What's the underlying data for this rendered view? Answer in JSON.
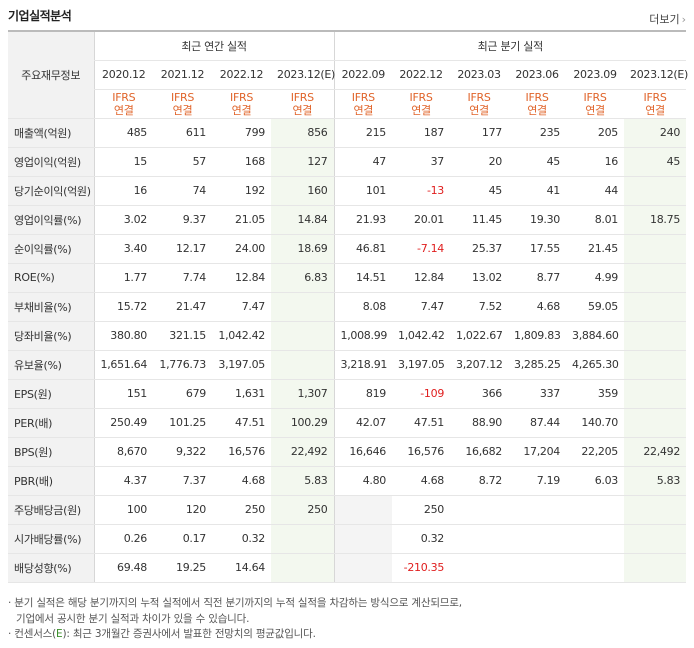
{
  "title": "기업실적분석",
  "more_label": "더보기",
  "header": {
    "corner": "주요재무정보",
    "annual_label": "최근 연간 실적",
    "quarterly_label": "최근 분기 실적",
    "periods": [
      "2020.12",
      "2021.12",
      "2022.12",
      "2023.12(E)",
      "2022.09",
      "2022.12",
      "2023.03",
      "2023.06",
      "2023.09",
      "2023.12(E)"
    ],
    "ifrs_line1": "IFRS",
    "ifrs_line2": "연결"
  },
  "rows": [
    {
      "label": "매출액(억원)",
      "values": [
        "485",
        "611",
        "799",
        "856",
        "215",
        "187",
        "177",
        "235",
        "205",
        "240"
      ]
    },
    {
      "label": "영업이익(억원)",
      "values": [
        "15",
        "57",
        "168",
        "127",
        "47",
        "37",
        "20",
        "45",
        "16",
        "45"
      ]
    },
    {
      "label": "당기순이익(억원)",
      "values": [
        "16",
        "74",
        "192",
        "160",
        "101",
        "-13",
        "45",
        "41",
        "44",
        ""
      ]
    },
    {
      "label": "영업이익률(%)",
      "values": [
        "3.02",
        "9.37",
        "21.05",
        "14.84",
        "21.93",
        "20.01",
        "11.45",
        "19.30",
        "8.01",
        "18.75"
      ]
    },
    {
      "label": "순이익률(%)",
      "values": [
        "3.40",
        "12.17",
        "24.00",
        "18.69",
        "46.81",
        "-7.14",
        "25.37",
        "17.55",
        "21.45",
        ""
      ]
    },
    {
      "label": "ROE(%)",
      "values": [
        "1.77",
        "7.74",
        "12.84",
        "6.83",
        "14.51",
        "12.84",
        "13.02",
        "8.77",
        "4.99",
        ""
      ]
    },
    {
      "label": "부채비율(%)",
      "values": [
        "15.72",
        "21.47",
        "7.47",
        "",
        "8.08",
        "7.47",
        "7.52",
        "4.68",
        "59.05",
        ""
      ]
    },
    {
      "label": "당좌비율(%)",
      "values": [
        "380.80",
        "321.15",
        "1,042.42",
        "",
        "1,008.99",
        "1,042.42",
        "1,022.67",
        "1,809.83",
        "3,884.60",
        ""
      ]
    },
    {
      "label": "유보율(%)",
      "values": [
        "1,651.64",
        "1,776.73",
        "3,197.05",
        "",
        "3,218.91",
        "3,197.05",
        "3,207.12",
        "3,285.25",
        "4,265.30",
        ""
      ]
    },
    {
      "label": "EPS(원)",
      "values": [
        "151",
        "679",
        "1,631",
        "1,307",
        "819",
        "-109",
        "366",
        "337",
        "359",
        ""
      ]
    },
    {
      "label": "PER(배)",
      "values": [
        "250.49",
        "101.25",
        "47.51",
        "100.29",
        "42.07",
        "47.51",
        "88.90",
        "87.44",
        "140.70",
        ""
      ]
    },
    {
      "label": "BPS(원)",
      "values": [
        "8,670",
        "9,322",
        "16,576",
        "22,492",
        "16,646",
        "16,576",
        "16,682",
        "17,204",
        "22,205",
        "22,492"
      ]
    },
    {
      "label": "PBR(배)",
      "values": [
        "4.37",
        "7.37",
        "4.68",
        "5.83",
        "4.80",
        "4.68",
        "8.72",
        "7.19",
        "6.03",
        "5.83"
      ]
    },
    {
      "label": "주당배당금(원)",
      "values": [
        "100",
        "120",
        "250",
        "250",
        "",
        "250",
        "",
        "",
        "",
        ""
      ]
    },
    {
      "label": "시가배당률(%)",
      "values": [
        "0.26",
        "0.17",
        "0.32",
        "",
        "",
        "0.32",
        "",
        "",
        "",
        ""
      ]
    },
    {
      "label": "배당성향(%)",
      "values": [
        "69.48",
        "19.25",
        "14.64",
        "",
        "",
        "-210.35",
        "",
        "",
        "",
        ""
      ]
    }
  ],
  "notes": [
    "· 분기 실적은 해당 분기까지의 누적 실적에서 직전 분기까지의 누적 실적을 차감하는 방식으로 계산되므로,",
    "기업에서 공시한 분기 실적과 차이가 있을 수 있습니다.",
    "· 컨센서스(",
    "E",
    "): 최근 3개월간 증권사에서 발표한 전망치의 평균값입니다."
  ]
}
